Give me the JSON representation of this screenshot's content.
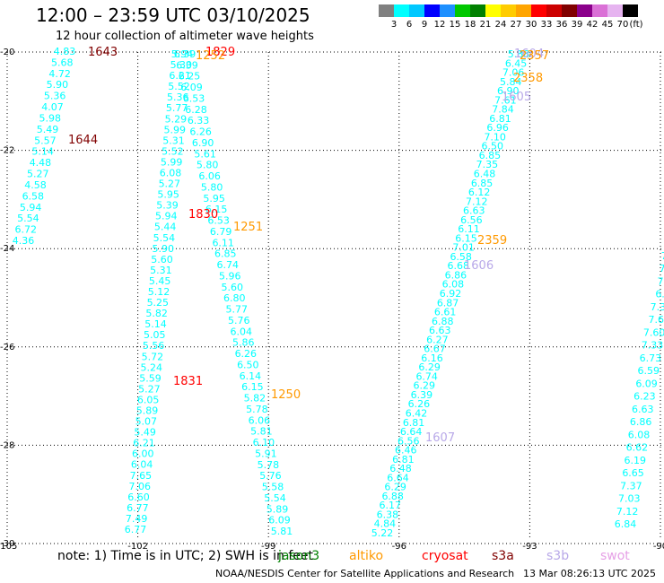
{
  "title": "12:00 – 23:59 UTC 03/10/2025",
  "subtitle": "12 hour collection of altimeter wave heights",
  "colorbar": {
    "colors": [
      "#808080",
      "#00ffff",
      "#00c8ff",
      "#0000ff",
      "#1e90ff",
      "#00c800",
      "#008000",
      "#ffff00",
      "#ffcc00",
      "#ffa500",
      "#ff0000",
      "#cc0000",
      "#800000",
      "#8b008b",
      "#da70d6",
      "#e6b4f0",
      "#000000"
    ],
    "labels": [
      "3",
      "6",
      "9",
      "12",
      "15",
      "18",
      "21",
      "24",
      "27",
      "30",
      "33",
      "36",
      "39",
      "42",
      "45",
      "70",
      "(ft)"
    ]
  },
  "axes": {
    "lon_ticks": [
      "-105",
      "-102",
      "-99",
      "-96",
      "-93",
      "-90"
    ],
    "lat_ticks": [
      "-20",
      "-22",
      "-24",
      "-26",
      "-28",
      "-30"
    ]
  },
  "tracks": [
    {
      "id": "track-a",
      "color": "#00ffff",
      "sat": "cryosat",
      "values": [
        "4.83",
        "5.68",
        "4.72",
        "5.90",
        "5.36",
        "4.07",
        "5.98",
        "5.49",
        "5.57",
        "5.14",
        "4.48",
        "5.27",
        "4.58",
        "6.58",
        "5.94",
        "5.54",
        "6.72",
        "4.36"
      ],
      "times": [
        {
          "text": "1643",
          "color": "#800000"
        },
        {
          "text": "1644",
          "color": "#800000"
        }
      ]
    },
    {
      "id": "track-b",
      "color": "#00ffff",
      "sat": "cryosat",
      "values": [
        "5.94",
        "5.30",
        "6.21",
        "5.52",
        "5.36",
        "5.77",
        "5.29",
        "5.99",
        "5.31",
        "5.52",
        "5.99",
        "6.08",
        "5.27",
        "5.95",
        "5.39",
        "5.94",
        "5.44",
        "5.54",
        "5.90",
        "5.60",
        "5.31",
        "5.45",
        "5.12",
        "5.25",
        "5.82",
        "5.14",
        "5.05",
        "5.56",
        "5.72",
        "5.24",
        "5.59",
        "5.27",
        "6.05",
        "5.89",
        "5.07",
        "5.49",
        "6.21",
        "6.00",
        "6.04",
        "7.65",
        "7.06",
        "6.60",
        "6.77",
        "7.49",
        "6.77"
      ],
      "times": [
        {
          "text": "1831",
          "color": "#ff0000"
        }
      ]
    },
    {
      "id": "track-c",
      "color": "#00ffff",
      "sat": "cryosat",
      "values": [
        "6.39",
        "6.39",
        "6.25",
        "6.09",
        "6.53",
        "6.28",
        "6.33",
        "6.26",
        "6.90",
        "5.61",
        "5.80",
        "6.06",
        "5.80",
        "5.95",
        "6.15",
        "6.53",
        "6.79",
        "6.11",
        "6.85",
        "6.74",
        "5.96",
        "5.60",
        "6.80",
        "5.77",
        "5.76",
        "6.04",
        "5.86",
        "6.26",
        "6.50",
        "6.14",
        "6.15",
        "5.82",
        "5.78",
        "6.06",
        "5.81",
        "6.10",
        "5.91",
        "5.78",
        "5.76",
        "5.58",
        "5.54",
        "5.89",
        "6.09",
        "5.81"
      ],
      "times": [
        {
          "text": "1829",
          "color": "#ff0000"
        },
        {
          "text": "1830",
          "color": "#ff0000"
        },
        {
          "text": "1252",
          "color": "#ff9900"
        },
        {
          "text": "1251",
          "color": "#ff9900"
        },
        {
          "text": "1250",
          "color": "#ff9900"
        }
      ]
    },
    {
      "id": "track-d",
      "color": "#00ffff",
      "sat": "s3b",
      "values": [
        "5.88",
        "6.45",
        "7.06",
        "5.84",
        "6.90",
        "7.61",
        "7.84",
        "6.81",
        "6.96",
        "7.10",
        "6.50",
        "6.85",
        "7.35",
        "6.48",
        "6.85",
        "6.12",
        "7.12",
        "6.63",
        "6.56",
        "6.11",
        "6.15",
        "7.01",
        "6.58",
        "6.68",
        "6.86",
        "6.08",
        "6.92",
        "6.87",
        "6.61",
        "6.88",
        "6.63",
        "6.27",
        "6.67",
        "6.16",
        "6.29",
        "6.74",
        "6.29",
        "6.39",
        "6.26",
        "6.42",
        "6.81",
        "6.64",
        "6.56",
        "6.46",
        "6.81",
        "6.48",
        "6.64",
        "6.29",
        "6.88",
        "6.17",
        "6.38",
        "4.84",
        "5.22"
      ],
      "times": [
        {
          "text": "1604",
          "color": "#b8a8e8"
        },
        {
          "text": "1605",
          "color": "#b8a8e8"
        },
        {
          "text": "1606",
          "color": "#b8a8e8"
        },
        {
          "text": "1607",
          "color": "#b8a8e8"
        },
        {
          "text": "2357",
          "color": "#ff9900"
        },
        {
          "text": "2358",
          "color": "#ff9900"
        },
        {
          "text": "2359",
          "color": "#ff9900"
        }
      ]
    },
    {
      "id": "track-e",
      "color": "#00ffff",
      "sat": "s3b",
      "values": [
        "7.",
        "7.",
        "7.",
        "6.",
        "7.3",
        "7.6",
        "7.60",
        "7.33",
        "6.73",
        "6.59",
        "6.09",
        "6.23",
        "6.63",
        "6.86",
        "6.08",
        "6.62",
        "6.19",
        "6.65",
        "7.37",
        "7.03",
        "7.12",
        "6.84"
      ],
      "times": []
    }
  ],
  "note": "note:  1) Time is in UTC;  2) SWH is in feet",
  "satellites": [
    {
      "name": "jason3",
      "color": "#008000"
    },
    {
      "name": "altiko",
      "color": "#ff9900"
    },
    {
      "name": "cryosat",
      "color": "#ff0000"
    },
    {
      "name": "s3a",
      "color": "#800000"
    },
    {
      "name": "s3b",
      "color": "#b8a8e8"
    },
    {
      "name": "swot",
      "color": "#e6a0e6"
    }
  ],
  "credit": "NOAA/NESDIS Center for Satellite Applications and Research",
  "timestamp": "13 Mar 08:26:13 UTC 2025"
}
